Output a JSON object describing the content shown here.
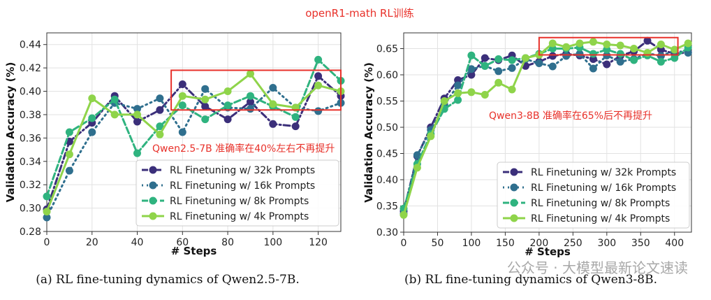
{
  "figure_title": "openR1-math RL训练",
  "watermark": "公众号 · 大模型最新论文速读",
  "legend_labels": [
    "RL Finetuning w/ 32k Prompts",
    "RL Finetuning w/ 16k Prompts",
    "RL Finetuning w/ 8k Prompts",
    "RL Finetuning w/ 4k Prompts"
  ],
  "colors": {
    "32k": "#3b2f7a",
    "16k": "#2f6f8e",
    "8k": "#2fb37f",
    "4k": "#8fd44a",
    "annotation": "#e8312a"
  },
  "chart_data": [
    {
      "type": "line",
      "caption": "(a) RL fine-tuning dynamics of Qwen2.5-7B.",
      "xlabel": "# Steps",
      "ylabel": "Validation Accuracy (%)",
      "xlim": [
        0,
        130
      ],
      "ylim": [
        0.28,
        0.45
      ],
      "xticks": [
        0,
        20,
        40,
        60,
        80,
        100,
        120
      ],
      "yticks": [
        0.28,
        0.3,
        0.32,
        0.34,
        0.36,
        0.38,
        0.4,
        0.42,
        0.44
      ],
      "grid": true,
      "legend_position": "lower-right",
      "annotation": "Qwen2.5-7B 准确率在40%左右不再提升",
      "highlight_box": {
        "x": [
          55,
          130
        ],
        "y": [
          0.384,
          0.418
        ]
      },
      "series": [
        {
          "name": "RL Finetuning w/ 32k Prompts",
          "style": "dashdot",
          "x": [
            0,
            10,
            20,
            30,
            40,
            50,
            60,
            70,
            80,
            90,
            100,
            110,
            120,
            130
          ],
          "y": [
            0.299,
            0.357,
            0.373,
            0.396,
            0.374,
            0.384,
            0.406,
            0.387,
            0.376,
            0.391,
            0.372,
            0.37,
            0.413,
            0.396
          ]
        },
        {
          "name": "RL Finetuning w/ 16k Prompts",
          "style": "dotted",
          "x": [
            0,
            10,
            20,
            30,
            40,
            50,
            60,
            70,
            80,
            90,
            100,
            110,
            120,
            130
          ],
          "y": [
            0.292,
            0.332,
            0.365,
            0.39,
            0.385,
            0.394,
            0.365,
            0.402,
            0.386,
            0.385,
            0.403,
            0.386,
            0.383,
            0.39
          ]
        },
        {
          "name": "RL Finetuning w/ 8k Prompts",
          "style": "dashed",
          "x": [
            0,
            10,
            20,
            30,
            40,
            50,
            60,
            70,
            80,
            90,
            100,
            110,
            120,
            130
          ],
          "y": [
            0.31,
            0.365,
            0.377,
            0.393,
            0.347,
            0.37,
            0.388,
            0.376,
            0.388,
            0.396,
            0.387,
            0.378,
            0.427,
            0.409
          ]
        },
        {
          "name": "RL Finetuning w/ 4k Prompts",
          "style": "solid",
          "x": [
            0,
            10,
            20,
            30,
            40,
            50,
            60,
            70,
            80,
            90,
            100,
            110,
            120,
            130
          ],
          "y": [
            0.297,
            0.346,
            0.394,
            0.38,
            0.38,
            0.363,
            0.396,
            0.393,
            0.4,
            0.415,
            0.389,
            0.386,
            0.405,
            0.4
          ]
        }
      ]
    },
    {
      "type": "line",
      "caption": "(b) RL fine-tuning dynamics of Qwen3-8B.",
      "xlabel": "# Steps",
      "ylabel": "Validation Accuracy (%)",
      "xlim": [
        0,
        425
      ],
      "ylim": [
        0.3,
        0.68
      ],
      "xticks": [
        0,
        50,
        100,
        150,
        200,
        250,
        300,
        350,
        400
      ],
      "yticks": [
        0.3,
        0.35,
        0.4,
        0.45,
        0.5,
        0.55,
        0.6,
        0.65
      ],
      "grid": true,
      "legend_position": "lower-right",
      "annotation": "Qwen3-8B 准确率在65%后不再提升",
      "highlight_box": {
        "x": [
          200,
          405
        ],
        "y": [
          0.638,
          0.671
        ]
      },
      "series": [
        {
          "name": "RL Finetuning w/ 32k Prompts",
          "style": "dashdot",
          "x": [
            0,
            20,
            40,
            60,
            80,
            100,
            120,
            140,
            160,
            180,
            200,
            220,
            240,
            260,
            280,
            300,
            320,
            340,
            360,
            380,
            400,
            420
          ],
          "y": [
            0.34,
            0.445,
            0.5,
            0.555,
            0.59,
            0.6,
            0.632,
            0.628,
            0.637,
            0.617,
            0.625,
            0.636,
            0.64,
            0.637,
            0.63,
            0.62,
            0.636,
            0.645,
            0.665,
            0.648,
            0.64,
            0.643
          ]
        },
        {
          "name": "RL Finetuning w/ 16k Prompts",
          "style": "dotted",
          "x": [
            0,
            20,
            40,
            60,
            80,
            100,
            120,
            140,
            160,
            180,
            200,
            220,
            240,
            260,
            280,
            300,
            320,
            340,
            360,
            380,
            400,
            420
          ],
          "y": [
            0.335,
            0.447,
            0.495,
            0.543,
            0.58,
            0.611,
            0.617,
            0.607,
            0.613,
            0.63,
            0.622,
            0.616,
            0.636,
            0.64,
            0.612,
            0.637,
            0.625,
            0.63,
            0.641,
            0.636,
            0.646,
            0.642
          ]
        },
        {
          "name": "RL Finetuning w/ 8k Prompts",
          "style": "dashed",
          "x": [
            0,
            20,
            40,
            60,
            80,
            100,
            120,
            140,
            160,
            180,
            200,
            220,
            240,
            260,
            280,
            300,
            320,
            340,
            360,
            380,
            400,
            420
          ],
          "y": [
            0.345,
            0.43,
            0.487,
            0.535,
            0.552,
            0.637,
            0.617,
            0.63,
            0.628,
            0.632,
            0.64,
            0.65,
            0.65,
            0.652,
            0.64,
            0.648,
            0.64,
            0.628,
            0.637,
            0.625,
            0.632,
            0.652
          ]
        },
        {
          "name": "RL Finetuning w/ 4k Prompts",
          "style": "solid",
          "x": [
            0,
            20,
            40,
            60,
            80,
            100,
            120,
            140,
            160,
            180,
            200,
            220,
            240,
            260,
            280,
            300,
            320,
            340,
            360,
            380,
            400,
            420
          ],
          "y": [
            0.333,
            0.423,
            0.483,
            0.55,
            0.565,
            0.567,
            0.562,
            0.585,
            0.572,
            0.632,
            0.638,
            0.66,
            0.653,
            0.66,
            0.663,
            0.658,
            0.656,
            0.65,
            0.642,
            0.658,
            0.648,
            0.66
          ]
        }
      ]
    }
  ]
}
